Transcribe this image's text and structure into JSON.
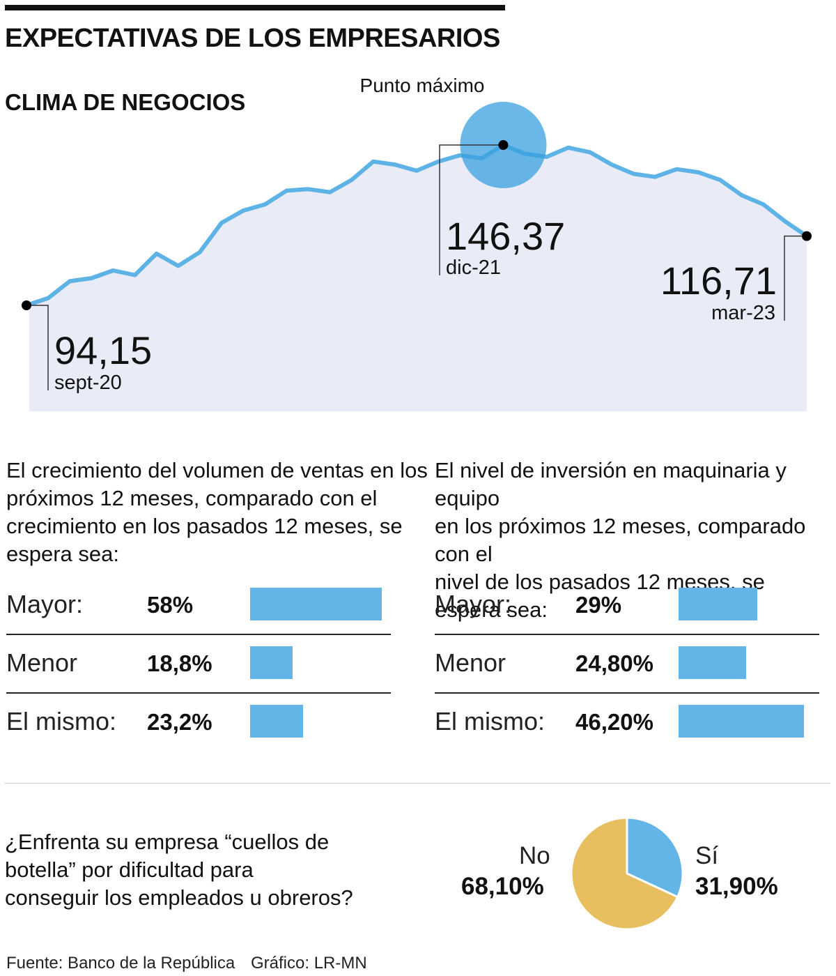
{
  "header": {
    "title": "EXPECTATIVAS DE LOS EMPRESARIOS",
    "subtitle": "CLIMA DE NEGOCIOS"
  },
  "colors": {
    "line": "#5eb3e6",
    "area": "#e9ecf6",
    "bar": "#64b5e7",
    "peak": "#3aa0e0",
    "pie_yes": "#64b5e7",
    "pie_no": "#e8bf5e"
  },
  "chart_data": [
    {
      "type": "area",
      "title": "CLIMA DE NEGOCIOS",
      "x_start": "sept-20",
      "x_end": "mar-23",
      "values": [
        94.15,
        96.5,
        102,
        103,
        105.5,
        104,
        111,
        107,
        111.5,
        121,
        125,
        127,
        131.5,
        132,
        131,
        135,
        141,
        140,
        138,
        141,
        143,
        142,
        146.37,
        143.5,
        142.5,
        145.5,
        144,
        140,
        137,
        136,
        138.5,
        137.5,
        135,
        130,
        127,
        121.5,
        116.71
      ],
      "ylim": [
        60,
        160
      ],
      "annotations": {
        "peak_title": "Punto máximo",
        "start_value": "94,15",
        "start_label": "sept-20",
        "peak_value": "146,37",
        "peak_label": "dic-21",
        "end_value": "116,71",
        "end_label": "mar-23"
      }
    },
    {
      "type": "bar",
      "title": "El crecimiento del volumen de ventas en los próximos 12 meses, comparado con el crecimiento en los pasados 12 meses, se espera sea:",
      "categories": [
        "Mayor:",
        "Menor",
        "El mismo:"
      ],
      "values": [
        58,
        18.8,
        23.2
      ],
      "labels": [
        "58%",
        "18,8%",
        "23,2%"
      ]
    },
    {
      "type": "bar",
      "title": "El nivel de inversión en maquinaria y equipo en los próximos 12 meses, comparado con el nivel de los pasados 12 meses, se espera sea:",
      "categories": [
        "Mayor:",
        "Menor",
        "El mismo:"
      ],
      "values": [
        29,
        24.8,
        46.2
      ],
      "labels": [
        "29%",
        "24,80%",
        "46,20%"
      ]
    },
    {
      "type": "pie",
      "title": "¿Enfrenta su empresa “cuellos de botella” por dificultad para conseguir los empleados u obreros?",
      "categories": [
        "Sí",
        "No"
      ],
      "values": [
        31.9,
        68.1
      ],
      "labels": [
        "31,90%",
        "68,10%"
      ]
    }
  ],
  "question1": [
    "El crecimiento del volumen de ventas en los",
    "próximos 12 meses, comparado con el",
    "crecimiento en los pasados 12 meses, se",
    "espera sea:"
  ],
  "question2": [
    "El nivel de inversión en maquinaria y equipo",
    "en los próximos 12 meses, comparado con el",
    "nivel de los pasados 12 meses, se espera sea:"
  ],
  "question3": [
    "¿Enfrenta su empresa “cuellos de",
    "botella” por dificultad para",
    "conseguir los empleados u obreros?"
  ],
  "footer": {
    "source": "Fuente: Banco de la República",
    "credit": "Gráfico: LR-MN"
  }
}
